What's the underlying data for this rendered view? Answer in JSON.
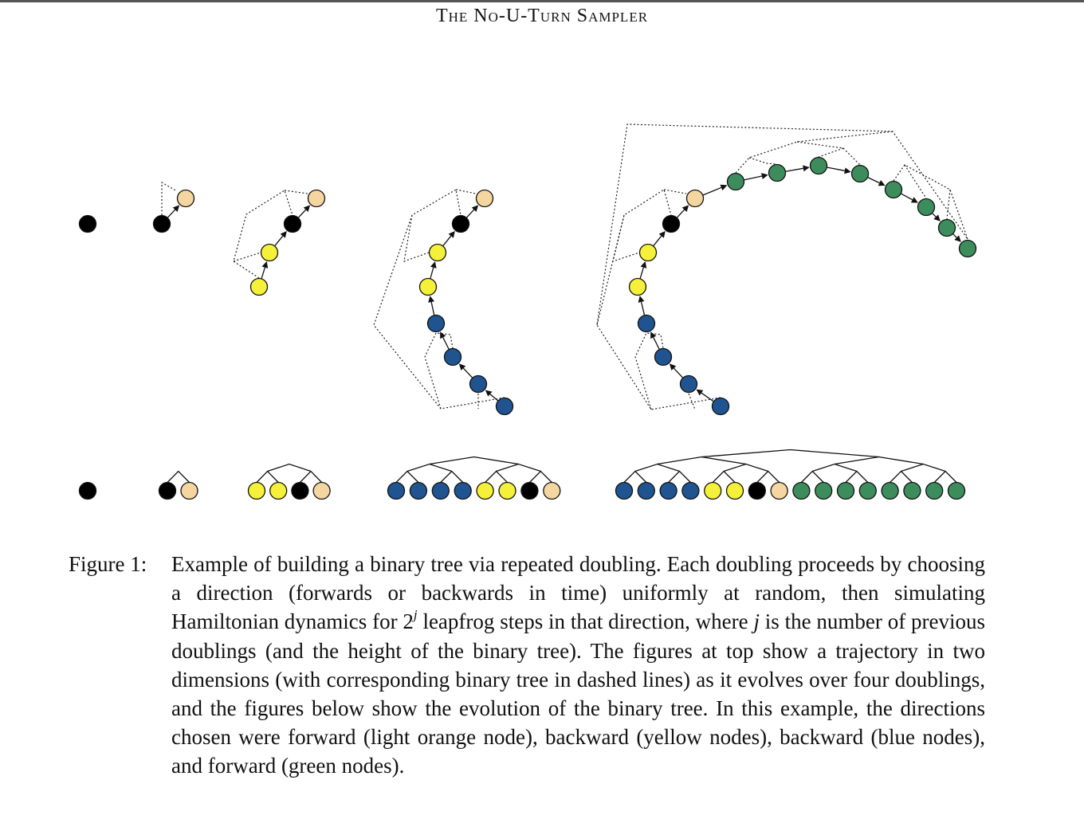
{
  "running_head": "The No-U-Turn Sampler",
  "caption": {
    "label": "Figure 1:",
    "seg1": "Example of building a binary tree via repeated doubling. Each doubling proceeds by choosing a direction (forwards or backwards in time) uniformly at random, then simulating Hamiltonian dynamics for 2",
    "sup": "j",
    "seg2": " leapfrog steps in that direction, where ",
    "var": "j",
    "seg3": " is the number of previous doublings (and the height of the binary tree). The figures at top show a trajectory in two dimensions (with corresponding binary tree in dashed lines) as it evolves over four doublings, and the figures below show the evolution of the binary tree. In this example, the directions chosen were forward (light orange node), backward (yellow nodes), backward (blue nodes), and forward (green nodes)."
  },
  "colors": {
    "initial": "#000000",
    "forward1": "#f5d5a0",
    "backward2": "#f5f03a",
    "backward3": "#1f5490",
    "forward4": "#3d8c5c"
  },
  "stages": [
    {
      "nodes": [
        "initial"
      ]
    },
    {
      "nodes": [
        "initial",
        "forward1"
      ]
    },
    {
      "nodes": [
        "backward2",
        "backward2",
        "initial",
        "forward1"
      ]
    },
    {
      "nodes": [
        "backward3",
        "backward3",
        "backward3",
        "backward3",
        "backward2",
        "backward2",
        "initial",
        "forward1"
      ]
    },
    {
      "nodes": [
        "backward3",
        "backward3",
        "backward3",
        "backward3",
        "backward2",
        "backward2",
        "initial",
        "forward1",
        "forward4",
        "forward4",
        "forward4",
        "forward4",
        "forward4",
        "forward4",
        "forward4",
        "forward4"
      ]
    }
  ]
}
